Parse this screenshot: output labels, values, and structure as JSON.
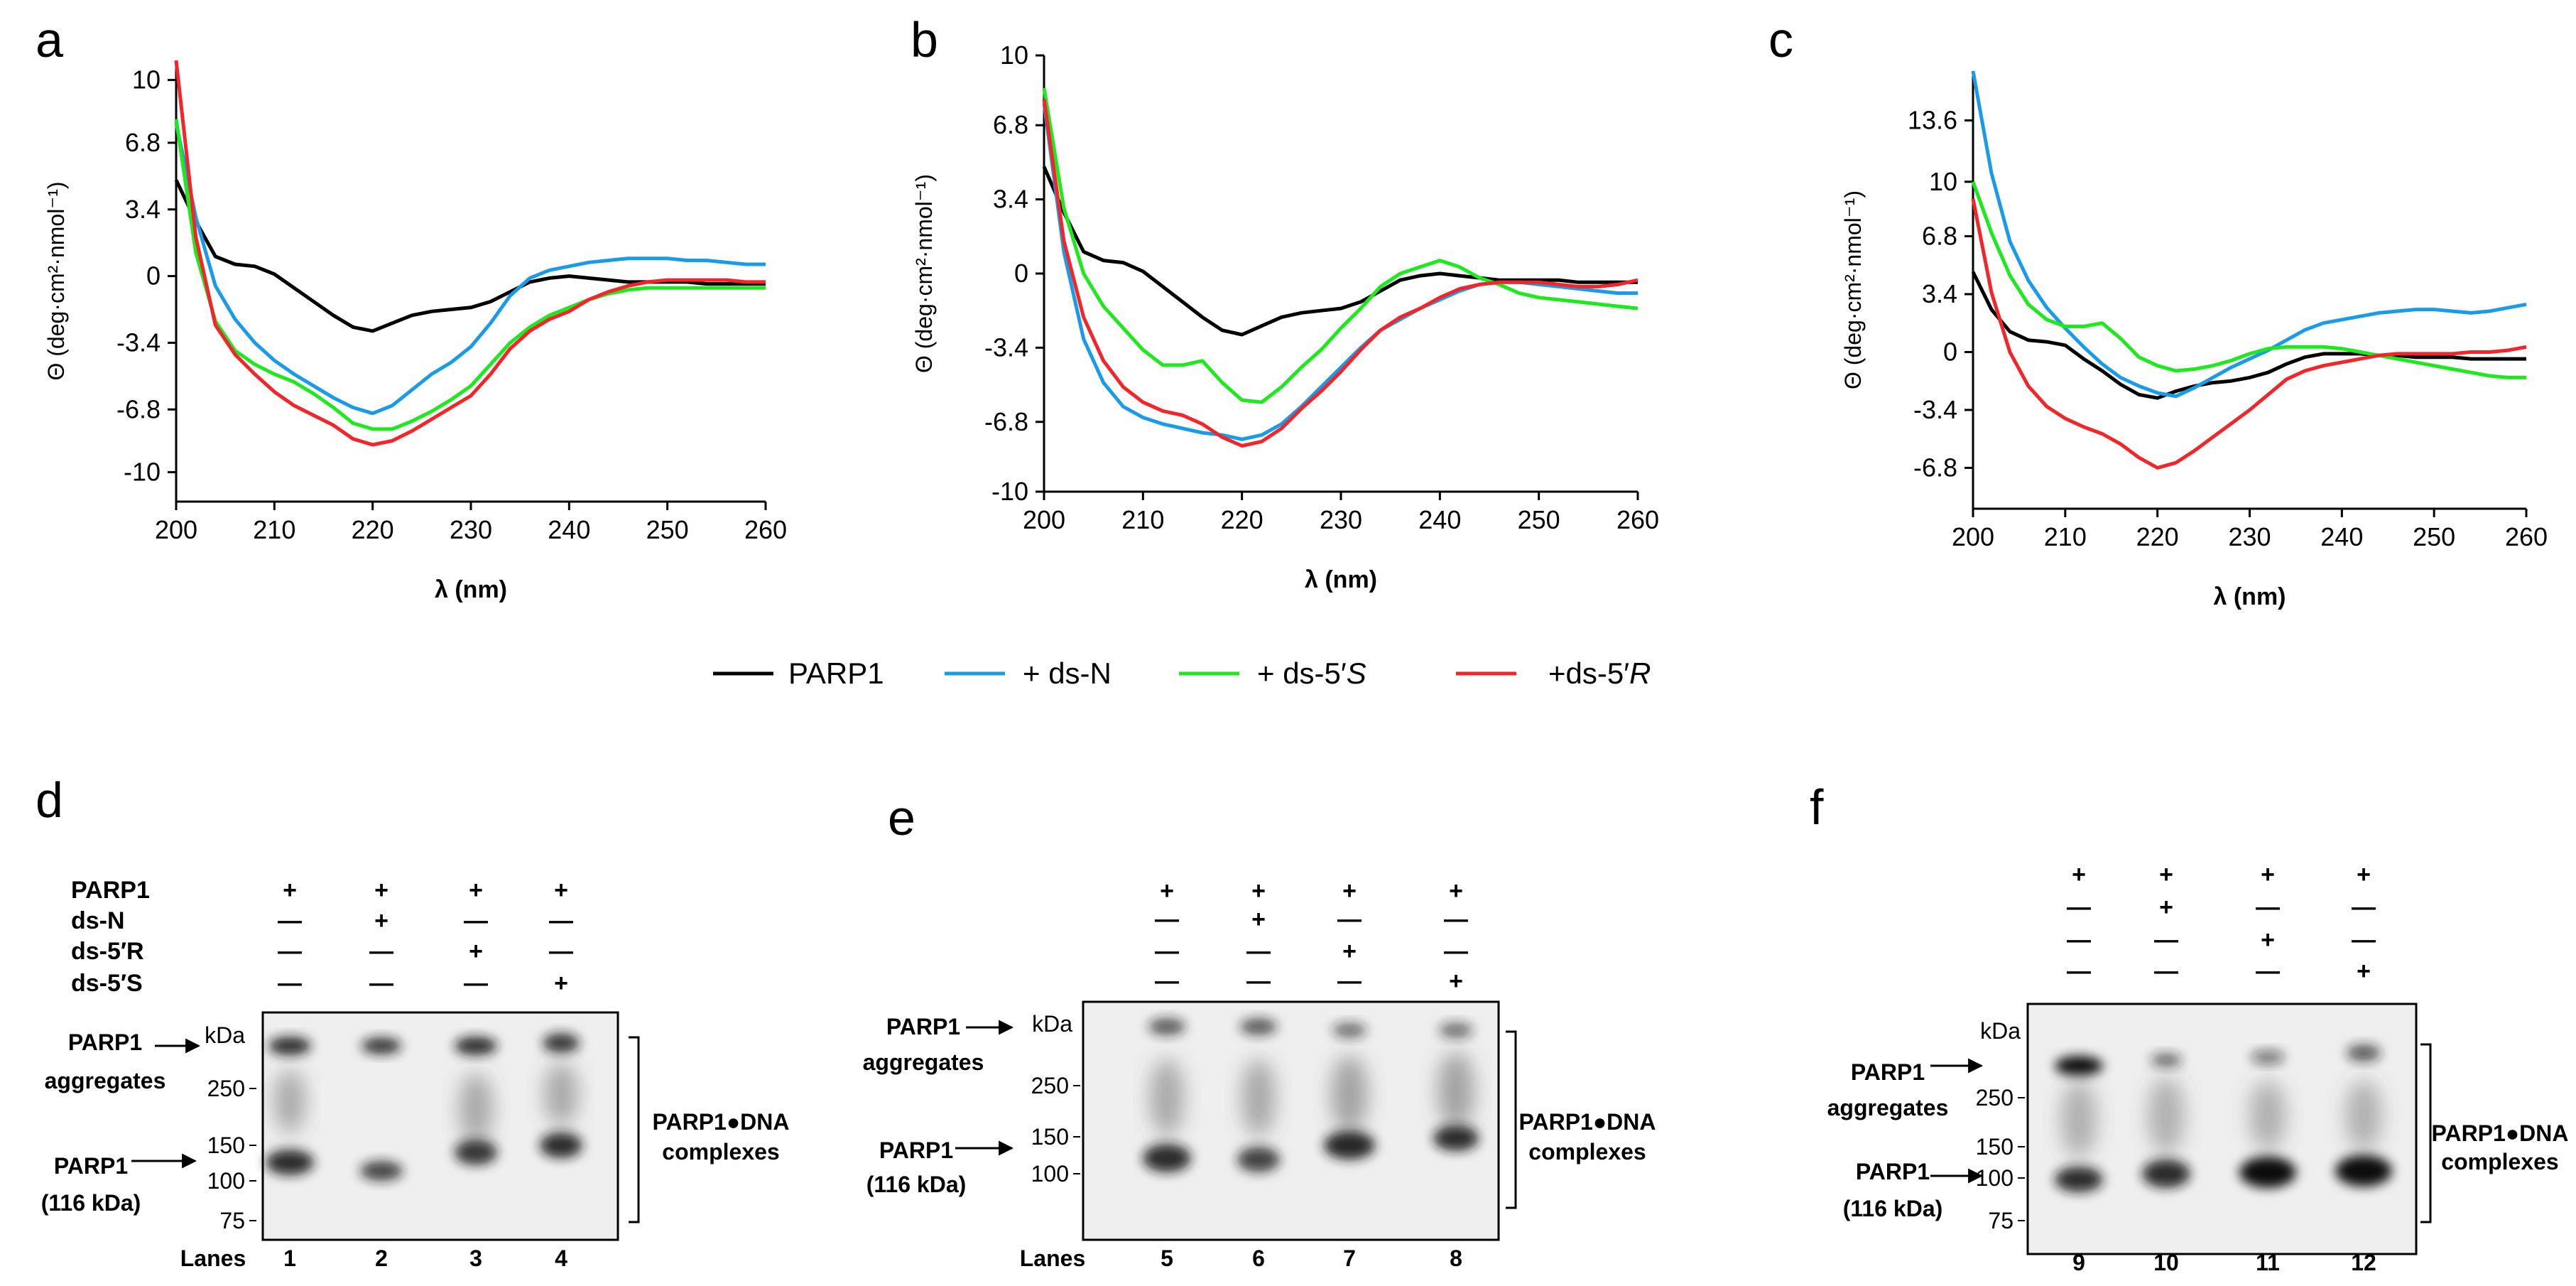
{
  "colors": {
    "parp1": "#000000",
    "dsN": "#1a9be8",
    "ds5S": "#1ee81e",
    "ds5R": "#f2262a"
  },
  "legend": {
    "items": [
      {
        "key": "parp1",
        "label": "PARP1",
        "suffix": ""
      },
      {
        "key": "dsN",
        "label": "+ ds-N",
        "suffix": ""
      },
      {
        "key": "ds5S",
        "label": "+ ds-5′",
        "suffix": "S"
      },
      {
        "key": "ds5R",
        "label": "+ds-5′",
        "suffix": "R"
      }
    ]
  },
  "chart_data": [
    {
      "panel": "a",
      "type": "line",
      "xlabel": "λ (nm)",
      "ylabel": "Θ (deg·cm²·nmol⁻¹)",
      "xlim": [
        200,
        260
      ],
      "ylim": [
        -11.5,
        11
      ],
      "xticks": [
        200,
        210,
        220,
        230,
        240,
        250,
        260
      ],
      "yticks": [
        {
          "v": 10,
          "t": "10"
        },
        {
          "v": 6.8,
          "t": "6.8"
        },
        {
          "v": 3.4,
          "t": "3.4"
        },
        {
          "v": 0,
          "t": "0"
        },
        {
          "v": -3.4,
          "t": "-3.4"
        },
        {
          "v": -6.8,
          "t": "-6.8"
        },
        {
          "v": -10,
          "t": "-10"
        }
      ],
      "x": [
        200,
        202,
        204,
        206,
        208,
        210,
        212,
        214,
        216,
        218,
        220,
        222,
        224,
        226,
        228,
        230,
        232,
        234,
        236,
        238,
        240,
        242,
        244,
        246,
        248,
        250,
        252,
        254,
        256,
        258,
        260
      ],
      "series": [
        {
          "key": "parp1",
          "name": "PARP1",
          "values": [
            4.9,
            2.8,
            1.0,
            0.6,
            0.5,
            0.1,
            -0.6,
            -1.3,
            -2.0,
            -2.6,
            -2.8,
            -2.4,
            -2.0,
            -1.8,
            -1.7,
            -1.6,
            -1.3,
            -0.8,
            -0.3,
            -0.1,
            0.0,
            -0.1,
            -0.2,
            -0.3,
            -0.3,
            -0.3,
            -0.3,
            -0.4,
            -0.4,
            -0.4,
            -0.4
          ]
        },
        {
          "key": "dsN",
          "name": "+ ds-N",
          "values": [
            7.8,
            3.0,
            -0.5,
            -2.2,
            -3.4,
            -4.3,
            -5.0,
            -5.6,
            -6.2,
            -6.7,
            -7.0,
            -6.6,
            -5.8,
            -5.0,
            -4.4,
            -3.6,
            -2.4,
            -1.0,
            -0.1,
            0.3,
            0.5,
            0.7,
            0.8,
            0.9,
            0.9,
            0.9,
            0.8,
            0.8,
            0.7,
            0.6,
            0.6
          ]
        },
        {
          "key": "ds5S",
          "name": "+ ds-5'S",
          "values": [
            8.0,
            1.2,
            -2.3,
            -3.8,
            -4.5,
            -5.0,
            -5.4,
            -6.0,
            -6.7,
            -7.5,
            -7.8,
            -7.8,
            -7.4,
            -6.9,
            -6.3,
            -5.6,
            -4.5,
            -3.4,
            -2.6,
            -2.0,
            -1.6,
            -1.2,
            -0.9,
            -0.7,
            -0.6,
            -0.6,
            -0.6,
            -0.6,
            -0.6,
            -0.6,
            -0.6
          ]
        },
        {
          "key": "ds5R",
          "name": "+ds-5'R",
          "values": [
            11.0,
            2.0,
            -2.5,
            -4.0,
            -5.0,
            -5.9,
            -6.6,
            -7.1,
            -7.6,
            -8.3,
            -8.6,
            -8.4,
            -7.9,
            -7.3,
            -6.7,
            -6.1,
            -5.0,
            -3.7,
            -2.8,
            -2.2,
            -1.8,
            -1.2,
            -0.8,
            -0.5,
            -0.3,
            -0.2,
            -0.2,
            -0.2,
            -0.2,
            -0.3,
            -0.3
          ]
        }
      ]
    },
    {
      "panel": "b",
      "type": "line",
      "xlabel": "λ (nm)",
      "ylabel": "Θ (deg·cm²·nmol⁻¹)",
      "xlim": [
        200,
        260
      ],
      "ylim": [
        -10,
        10
      ],
      "xticks": [
        200,
        210,
        220,
        230,
        240,
        250,
        260
      ],
      "yticks": [
        {
          "v": 10,
          "t": "10"
        },
        {
          "v": 6.8,
          "t": "6.8"
        },
        {
          "v": 3.4,
          "t": "3.4"
        },
        {
          "v": 0,
          "t": "0"
        },
        {
          "v": -3.4,
          "t": "-3.4"
        },
        {
          "v": -6.8,
          "t": "-6.8"
        },
        {
          "v": -10,
          "t": "-10"
        }
      ],
      "x": [
        200,
        202,
        204,
        206,
        208,
        210,
        212,
        214,
        216,
        218,
        220,
        222,
        224,
        226,
        228,
        230,
        232,
        234,
        236,
        238,
        240,
        242,
        244,
        246,
        248,
        250,
        252,
        254,
        256,
        258,
        260
      ],
      "series": [
        {
          "key": "parp1",
          "name": "PARP1",
          "values": [
            4.9,
            2.8,
            1.0,
            0.6,
            0.5,
            0.1,
            -0.6,
            -1.3,
            -2.0,
            -2.6,
            -2.8,
            -2.4,
            -2.0,
            -1.8,
            -1.7,
            -1.6,
            -1.3,
            -0.8,
            -0.3,
            -0.1,
            0.0,
            -0.1,
            -0.2,
            -0.3,
            -0.3,
            -0.3,
            -0.3,
            -0.4,
            -0.4,
            -0.4,
            -0.4
          ]
        },
        {
          "key": "dsN",
          "name": "+ ds-N",
          "values": [
            7.8,
            1.0,
            -3.0,
            -5.0,
            -6.1,
            -6.6,
            -6.9,
            -7.1,
            -7.3,
            -7.4,
            -7.6,
            -7.4,
            -6.9,
            -6.1,
            -5.2,
            -4.3,
            -3.4,
            -2.6,
            -2.1,
            -1.6,
            -1.2,
            -0.8,
            -0.5,
            -0.4,
            -0.4,
            -0.5,
            -0.6,
            -0.7,
            -0.8,
            -0.9,
            -0.9
          ]
        },
        {
          "key": "ds5S",
          "name": "+ ds-5'S",
          "values": [
            8.5,
            3.0,
            0.0,
            -1.5,
            -2.5,
            -3.5,
            -4.2,
            -4.2,
            -4.0,
            -5.0,
            -5.8,
            -5.9,
            -5.2,
            -4.3,
            -3.5,
            -2.5,
            -1.6,
            -0.6,
            0.0,
            0.3,
            0.6,
            0.3,
            -0.2,
            -0.5,
            -0.9,
            -1.1,
            -1.2,
            -1.3,
            -1.4,
            -1.5,
            -1.6
          ]
        },
        {
          "key": "ds5R",
          "name": "+ds-5'R",
          "values": [
            8.0,
            1.5,
            -2.0,
            -4.0,
            -5.2,
            -5.9,
            -6.3,
            -6.5,
            -6.9,
            -7.5,
            -7.9,
            -7.7,
            -7.1,
            -6.2,
            -5.4,
            -4.5,
            -3.5,
            -2.6,
            -2.0,
            -1.6,
            -1.1,
            -0.7,
            -0.5,
            -0.4,
            -0.4,
            -0.4,
            -0.5,
            -0.6,
            -0.6,
            -0.5,
            -0.3
          ]
        }
      ]
    },
    {
      "panel": "c",
      "type": "line",
      "xlabel": "λ (nm)",
      "ylabel": "Θ (deg·cm²·nmol⁻¹)",
      "xlim": [
        200,
        260
      ],
      "ylim": [
        -9.2,
        16.5
      ],
      "xticks": [
        200,
        210,
        220,
        230,
        240,
        250,
        260
      ],
      "yticks": [
        {
          "v": 13.6,
          "t": "13.6"
        },
        {
          "v": 10,
          "t": "10"
        },
        {
          "v": 6.8,
          "t": "6.8"
        },
        {
          "v": 3.4,
          "t": "3.4"
        },
        {
          "v": 0,
          "t": "0"
        },
        {
          "v": -3.4,
          "t": "-3.4"
        },
        {
          "v": -6.8,
          "t": "-6.8"
        }
      ],
      "x": [
        200,
        202,
        204,
        206,
        208,
        210,
        212,
        214,
        216,
        218,
        220,
        222,
        224,
        226,
        228,
        230,
        232,
        234,
        236,
        238,
        240,
        242,
        244,
        246,
        248,
        250,
        252,
        254,
        256,
        258,
        260
      ],
      "series": [
        {
          "key": "parp1",
          "name": "PARP1",
          "values": [
            4.7,
            2.5,
            1.2,
            0.7,
            0.6,
            0.4,
            -0.4,
            -1.1,
            -1.9,
            -2.5,
            -2.7,
            -2.3,
            -2.0,
            -1.8,
            -1.7,
            -1.5,
            -1.2,
            -0.7,
            -0.3,
            -0.1,
            -0.1,
            -0.1,
            -0.2,
            -0.2,
            -0.3,
            -0.3,
            -0.3,
            -0.4,
            -0.4,
            -0.4,
            -0.4
          ]
        },
        {
          "key": "dsN",
          "name": "+ ds-N",
          "values": [
            16.5,
            10.5,
            6.5,
            4.2,
            2.6,
            1.4,
            0.3,
            -0.7,
            -1.5,
            -2.0,
            -2.4,
            -2.6,
            -2.1,
            -1.5,
            -0.9,
            -0.4,
            0.1,
            0.7,
            1.3,
            1.7,
            1.9,
            2.1,
            2.3,
            2.4,
            2.5,
            2.5,
            2.4,
            2.3,
            2.4,
            2.6,
            2.8
          ]
        },
        {
          "key": "ds5S",
          "name": "+ ds-5'S",
          "values": [
            10.0,
            7.0,
            4.5,
            2.8,
            1.9,
            1.5,
            1.5,
            1.7,
            0.8,
            -0.3,
            -0.8,
            -1.1,
            -1.0,
            -0.8,
            -0.5,
            -0.1,
            0.2,
            0.3,
            0.3,
            0.3,
            0.2,
            0.0,
            -0.2,
            -0.4,
            -0.6,
            -0.8,
            -1.0,
            -1.2,
            -1.4,
            -1.5,
            -1.5
          ]
        },
        {
          "key": "ds5R",
          "name": "+ds-5'R",
          "values": [
            9.0,
            3.5,
            0.0,
            -2.0,
            -3.2,
            -3.9,
            -4.4,
            -4.8,
            -5.4,
            -6.2,
            -6.8,
            -6.5,
            -5.8,
            -5.0,
            -4.2,
            -3.4,
            -2.5,
            -1.6,
            -1.1,
            -0.8,
            -0.6,
            -0.4,
            -0.2,
            -0.1,
            -0.1,
            -0.1,
            -0.1,
            0.0,
            0.0,
            0.1,
            0.3
          ]
        }
      ]
    }
  ],
  "gel_d": {
    "panel": "d",
    "row_labels": [
      "PARP1",
      "ds-N",
      "ds-5′R",
      "ds-5′S"
    ],
    "signs": [
      [
        "+",
        "+",
        "+",
        "+"
      ],
      [
        "—",
        "+",
        "—",
        "—"
      ],
      [
        "—",
        "—",
        "+",
        "—"
      ],
      [
        "—",
        "—",
        "—",
        "+"
      ]
    ],
    "kda_label": "kDa",
    "markers": [
      "250",
      "150",
      "100",
      "75"
    ],
    "aggregates_label": [
      "PARP1",
      "aggregates"
    ],
    "parp1_label": [
      "PARP1",
      "(116 kDa)"
    ],
    "complex_label": [
      "PARP1●DNA",
      "complexes"
    ],
    "lanes_label": "Lanes",
    "lanes": [
      "1",
      "2",
      "3",
      "4"
    ]
  },
  "gel_e": {
    "panel": "e",
    "signs": [
      [
        "+",
        "+",
        "+",
        "+"
      ],
      [
        "—",
        "+",
        "—",
        "—"
      ],
      [
        "—",
        "—",
        "+",
        "—"
      ],
      [
        "—",
        "—",
        "—",
        "+"
      ]
    ],
    "kda_label": "kDa",
    "markers": [
      "250",
      "150",
      "100"
    ],
    "aggregates_label": [
      "PARP1",
      "aggregates"
    ],
    "parp1_label": [
      "PARP1",
      "(116 kDa)"
    ],
    "complex_label": [
      "PARP1●DNA",
      "complexes"
    ],
    "lanes_label": "Lanes",
    "lanes": [
      "5",
      "6",
      "7",
      "8"
    ]
  },
  "gel_f": {
    "panel": "f",
    "signs": [
      [
        "+",
        "+",
        "+",
        "+"
      ],
      [
        "—",
        "+",
        "—",
        "—"
      ],
      [
        "—",
        "—",
        "+",
        "—"
      ],
      [
        "—",
        "—",
        "—",
        "+"
      ]
    ],
    "kda_label": "kDa",
    "markers": [
      "250",
      "150",
      "100",
      "75"
    ],
    "aggregates_label": [
      "PARP1",
      "aggregates"
    ],
    "parp1_label": [
      "PARP1",
      "(116 kDa)"
    ],
    "complex_label": [
      "PARP1●DNA",
      "complexes"
    ],
    "lanes": [
      "9",
      "10",
      "11",
      "12"
    ]
  }
}
